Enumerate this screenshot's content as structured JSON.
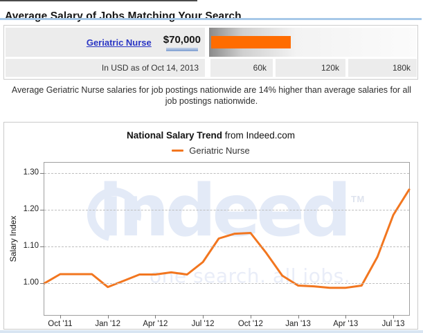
{
  "header": {
    "title": "Average Salary of Jobs Matching Your Search",
    "rule_color": "#a6c8e8"
  },
  "salary_widget": {
    "job_link": "Geriatric Nurse",
    "salary_label": "$70,000",
    "footnote": "In USD as of Oct 14, 2013",
    "scale_labels": [
      "60k",
      "120k",
      "180k"
    ],
    "bar": {
      "value_usd": 70000,
      "scale_max_usd": 180000,
      "color": "#ff6c00"
    },
    "link_color": "#2a35c4",
    "salary_underline_color": "#8aa7d5"
  },
  "summary_text": "Average Geriatric Nurse salaries for job postings nationwide are 14% higher than average salaries for all job postings nationwide.",
  "chart_header": {
    "title_bold": "National Salary Trend",
    "title_suffix": " from Indeed.com",
    "legend_label": "Geriatric Nurse"
  },
  "watermark": {
    "logo_text": "indeed",
    "tm_text": "TM",
    "tagline": "one search. all jobs.",
    "color": "#e3eaf7"
  },
  "chart_data": {
    "type": "line",
    "title": "National Salary Trend from Indeed.com",
    "ylabel": "Salary Index",
    "xlabel": "",
    "x": [
      "Sep '11",
      "Oct '11",
      "Nov '11",
      "Dec '11",
      "Jan '12",
      "Feb '12",
      "Mar '12",
      "Apr '12",
      "May '12",
      "Jun '12",
      "Jul '12",
      "Aug '12",
      "Sep '12",
      "Oct '12",
      "Nov '12",
      "Dec '12",
      "Jan '13",
      "Feb '13",
      "Mar '13",
      "Apr '13",
      "May '13",
      "Jun '13",
      "Jul '13",
      "Aug '13"
    ],
    "xticks": [
      "Oct '11",
      "Jan '12",
      "Apr '12",
      "Jul '12",
      "Oct '12",
      "Jan '13",
      "Apr '13",
      "Jul '13"
    ],
    "yticks": [
      1.0,
      1.1,
      1.2,
      1.3
    ],
    "ylim": [
      0.914,
      1.328
    ],
    "grid": "horizontal-dashed",
    "legend_position": "top-center",
    "series": [
      {
        "name": "Geriatric Nurse",
        "color": "#f2761f",
        "values": [
          1.0,
          1.025,
          1.025,
          1.025,
          0.99,
          1.007,
          1.024,
          1.024,
          1.03,
          1.024,
          1.058,
          1.122,
          1.135,
          1.137,
          1.082,
          1.021,
          0.994,
          0.992,
          0.988,
          0.988,
          0.994,
          1.072,
          1.186,
          1.255
        ]
      }
    ]
  }
}
